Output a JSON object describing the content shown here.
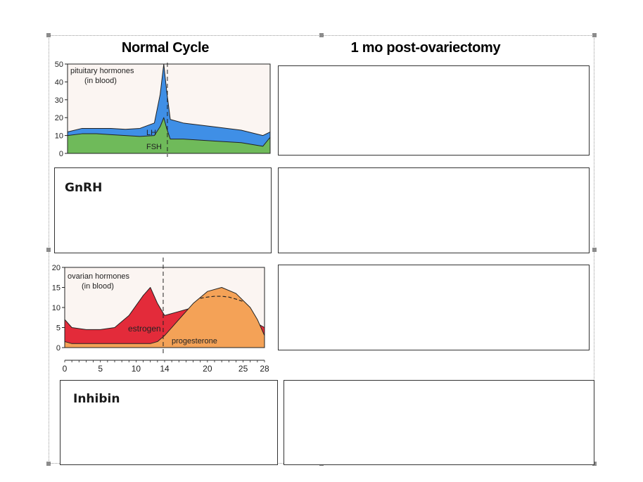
{
  "headers": {
    "normal": "Normal Cycle",
    "post": "1 mo post-ovariectomy"
  },
  "rows": {
    "gnrh_label": "GnRH",
    "inhibin_label": "Inhibin"
  },
  "colors": {
    "lh": "#3f8fe6",
    "fsh": "#6fba5a",
    "estrogen": "#e32b3a",
    "progesterone": "#f4a257",
    "panel_bg": "#fbf5f2"
  },
  "chart_data": [
    {
      "type": "area",
      "title": "pituitary hormones\n(in blood)",
      "x": [
        0,
        2,
        4,
        6,
        8,
        10,
        12,
        12.8,
        13.3,
        13.7,
        14.2,
        16,
        20,
        24,
        27,
        28
      ],
      "series": [
        {
          "name": "LH",
          "values": [
            12,
            14,
            14,
            14,
            13.5,
            14,
            17,
            33,
            50,
            35,
            19,
            17,
            15,
            13,
            10,
            12
          ]
        },
        {
          "name": "FSH",
          "values": [
            10,
            11,
            11,
            10.5,
            10,
            9.5,
            10,
            15,
            20,
            14,
            8,
            8,
            7,
            6,
            4,
            9
          ]
        }
      ],
      "ylim": [
        0,
        50
      ],
      "yticks": [
        "0",
        "10",
        "20",
        "30",
        "40",
        "50"
      ],
      "annotations": [
        "LH",
        "FSH"
      ]
    },
    {
      "type": "area",
      "title": "ovarian hormones\n(in blood)",
      "x": [
        0,
        1,
        3,
        5,
        7,
        9,
        11,
        12,
        13,
        14,
        16,
        18,
        20,
        22,
        24,
        26,
        27,
        28
      ],
      "series": [
        {
          "name": "estrogen",
          "values": [
            7,
            5,
            4.5,
            4.5,
            5,
            8,
            13,
            15,
            11,
            8,
            9,
            10,
            11,
            10,
            9,
            8,
            6,
            5
          ]
        },
        {
          "name": "progesterone",
          "values": [
            1.5,
            1,
            1,
            1,
            1,
            1,
            1,
            1,
            1.5,
            3,
            7,
            11,
            14,
            15,
            13.5,
            10,
            7,
            3
          ]
        }
      ],
      "ylim": [
        0,
        20
      ],
      "yticks": [
        "0",
        "5",
        "10",
        "15",
        "20"
      ],
      "xticks": [
        "0",
        "5",
        "10",
        "14",
        "20",
        "25",
        "28"
      ],
      "annotations": [
        "estrogen",
        "progesterone"
      ]
    }
  ]
}
